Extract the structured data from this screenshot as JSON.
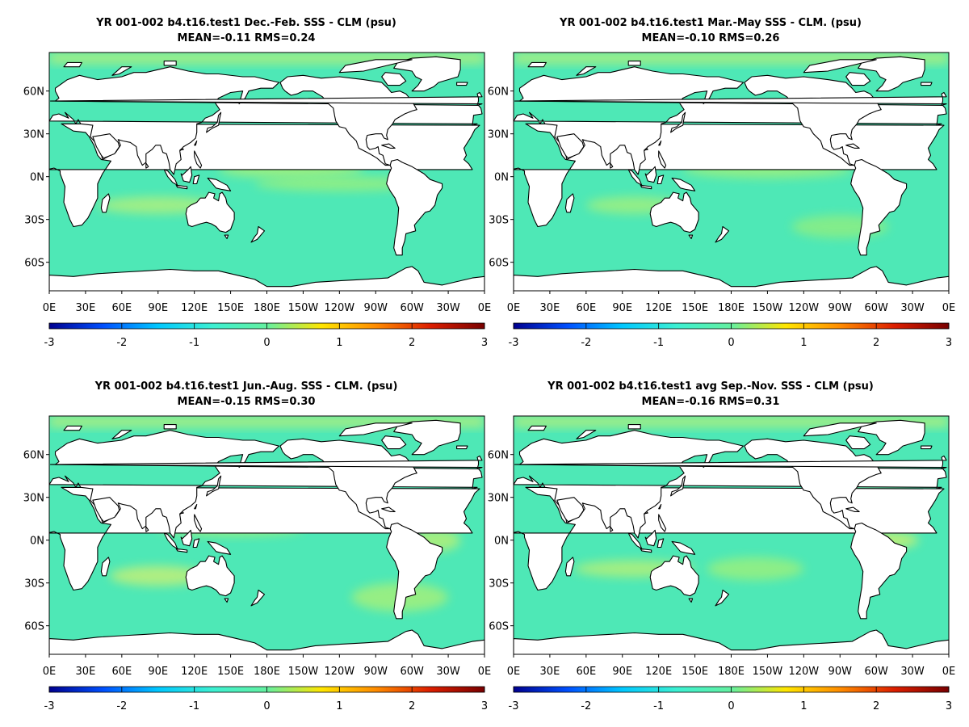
{
  "colorbar": {
    "ticks": [
      "-3",
      "-2",
      "-1",
      "0",
      "1",
      "2",
      "3"
    ],
    "stops": [
      "#00008f",
      "#0050ff",
      "#00c8ff",
      "#3cf0d2",
      "#64f0a0",
      "#ffe600",
      "#ff8c00",
      "#dc1e00",
      "#780000"
    ]
  },
  "axes": {
    "lon_ticks": [
      "0E",
      "30E",
      "60E",
      "90E",
      "120E",
      "150E",
      "180E",
      "150W",
      "120W",
      "90W",
      "60W",
      "30W",
      "0E"
    ],
    "lat_ticks": [
      "60N",
      "30N",
      "0N",
      "30S",
      "60S"
    ]
  },
  "colors": {
    "ocean": "#4ee8b6",
    "land": "#ffffff",
    "coast": "#000000"
  },
  "panels": [
    {
      "title": "YR 001-002 b4.t16.test1  Dec.-Feb. SSS - CLM (psu)",
      "stats": "MEAN=-0.11   RMS=0.24"
    },
    {
      "title": "YR 001-002 b4.t16.test1 Mar.-May SSS - CLM. (psu)",
      "stats": "MEAN=-0.10   RMS=0.26"
    },
    {
      "title": "YR 001-002 b4.t16.test1 Jun.-Aug. SSS - CLM. (psu)",
      "stats": "MEAN=-0.15   RMS=0.30"
    },
    {
      "title": "YR 001-002 b4.t16.test1 avg Sep.-Nov. SSS - CLM (psu)",
      "stats": "MEAN=-0.16   RMS=0.31"
    }
  ]
}
